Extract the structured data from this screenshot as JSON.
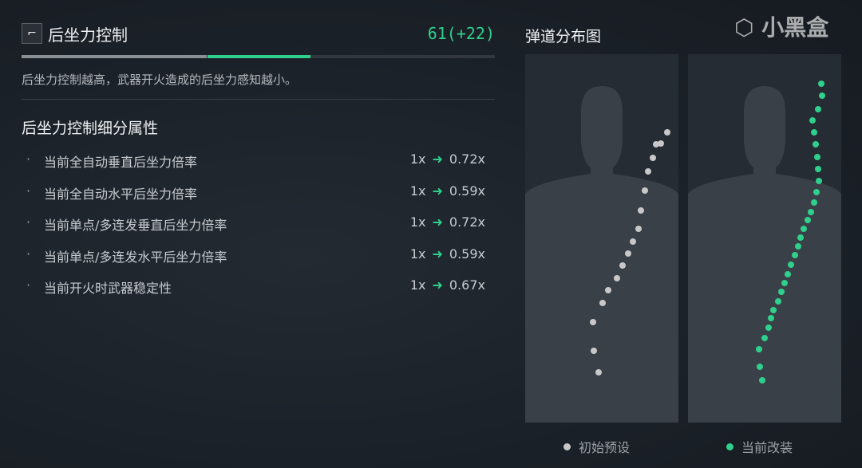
{
  "header": {
    "icon": "pistol-icon",
    "title": "后坐力控制",
    "score": "61(+22)",
    "bar": {
      "base": 39,
      "bonus": 22,
      "max": 100
    },
    "description": "后坐力控制越高，武器开火造成的后坐力感知越小。"
  },
  "details": {
    "title": "后坐力控制细分属性",
    "bullet": "·",
    "arrow": "➜",
    "items": [
      {
        "label": "当前全自动垂直后坐力倍率",
        "from": "1x",
        "to": "0.72x"
      },
      {
        "label": "当前全自动水平后坐力倍率",
        "from": "1x",
        "to": "0.59x"
      },
      {
        "label": "当前单点/多连发垂直后坐力倍率",
        "from": "1x",
        "to": "0.72x"
      },
      {
        "label": "当前单点/多连发水平后坐力倍率",
        "from": "1x",
        "to": "0.59x"
      },
      {
        "label": "当前开火时武器稳定性",
        "from": "1x",
        "to": "0.67x"
      }
    ]
  },
  "ballistics": {
    "title": "弹道分布图",
    "legend": [
      {
        "label": "初始预设",
        "color": "#c8c8c8"
      },
      {
        "label": "当前改装",
        "color": "#2fd08c"
      }
    ]
  },
  "watermark": "小黑盒",
  "colors": {
    "accent": "#2fd08c",
    "bg": "#1b2128"
  }
}
